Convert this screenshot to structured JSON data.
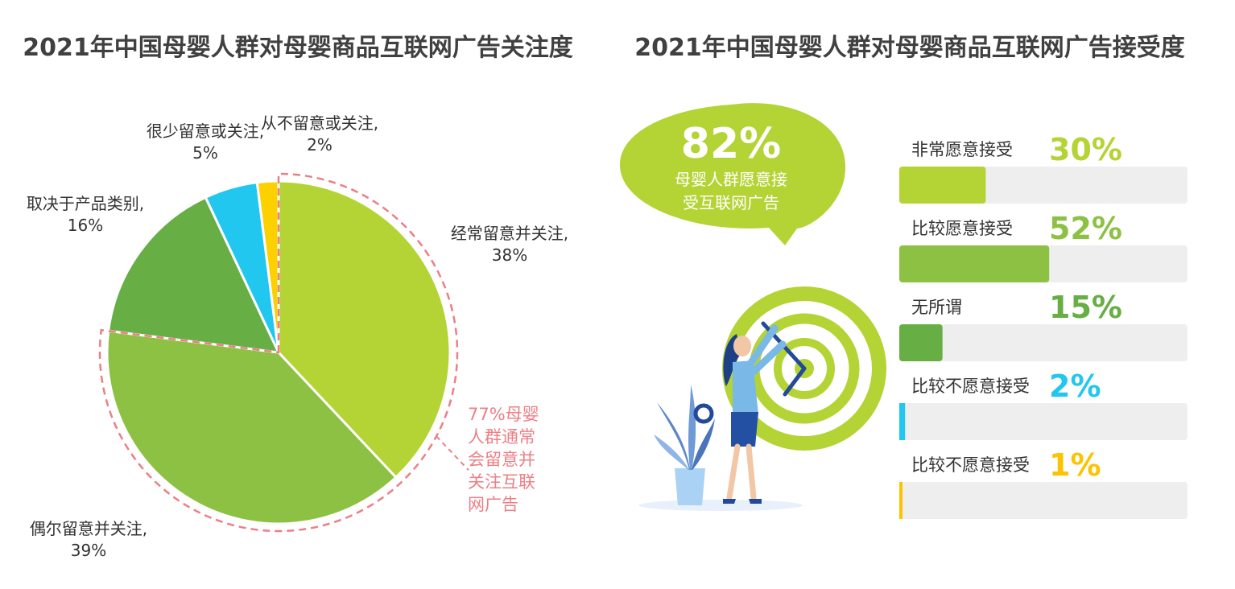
{
  "chart_data": [
    {
      "type": "pie",
      "title": "2021年中国母婴人群对母婴商品互联网广告关注度",
      "slices": [
        {
          "label": "经常留意并关注,",
          "value": 38,
          "value_label": "38%",
          "color": "#b4d334"
        },
        {
          "label": "偶尔留意并关注,",
          "value": 39,
          "value_label": "39%",
          "color": "#8dc143"
        },
        {
          "label": "取决于产品类别,",
          "value": 16,
          "value_label": "16%",
          "color": "#67ae45"
        },
        {
          "label": "很少留意或关注,",
          "value": 5,
          "value_label": "5%",
          "color": "#22c7ef"
        },
        {
          "label": "从不留意或关注,",
          "value": 2,
          "value_label": "2%",
          "color": "#fdd000"
        }
      ],
      "annotation": {
        "lines": [
          "77%母婴",
          "人群通常",
          "会留意并",
          "关注互联",
          "网广告"
        ],
        "color": "#ec7f86"
      }
    },
    {
      "type": "bar",
      "title": "2021年中国母婴人群对母婴商品互联网广告接受度",
      "highlight": {
        "value": "82%",
        "lines": [
          "母婴人群愿意接",
          "受互联网广告"
        ],
        "color": "#b4d334"
      },
      "categories": [
        "非常愿意接受",
        "比较愿意接受",
        "无所谓",
        "比较不愿意接受",
        "比较不愿意接受"
      ],
      "values": [
        30,
        52,
        15,
        2,
        1
      ],
      "value_labels": [
        "30%",
        "52%",
        "15%",
        "2%",
        "1%"
      ],
      "colors": [
        "#b4d334",
        "#8dc143",
        "#67ae45",
        "#22c7ef",
        "#fdc300"
      ],
      "track_color": "#eeeeee",
      "xlim": [
        0,
        100
      ]
    }
  ]
}
